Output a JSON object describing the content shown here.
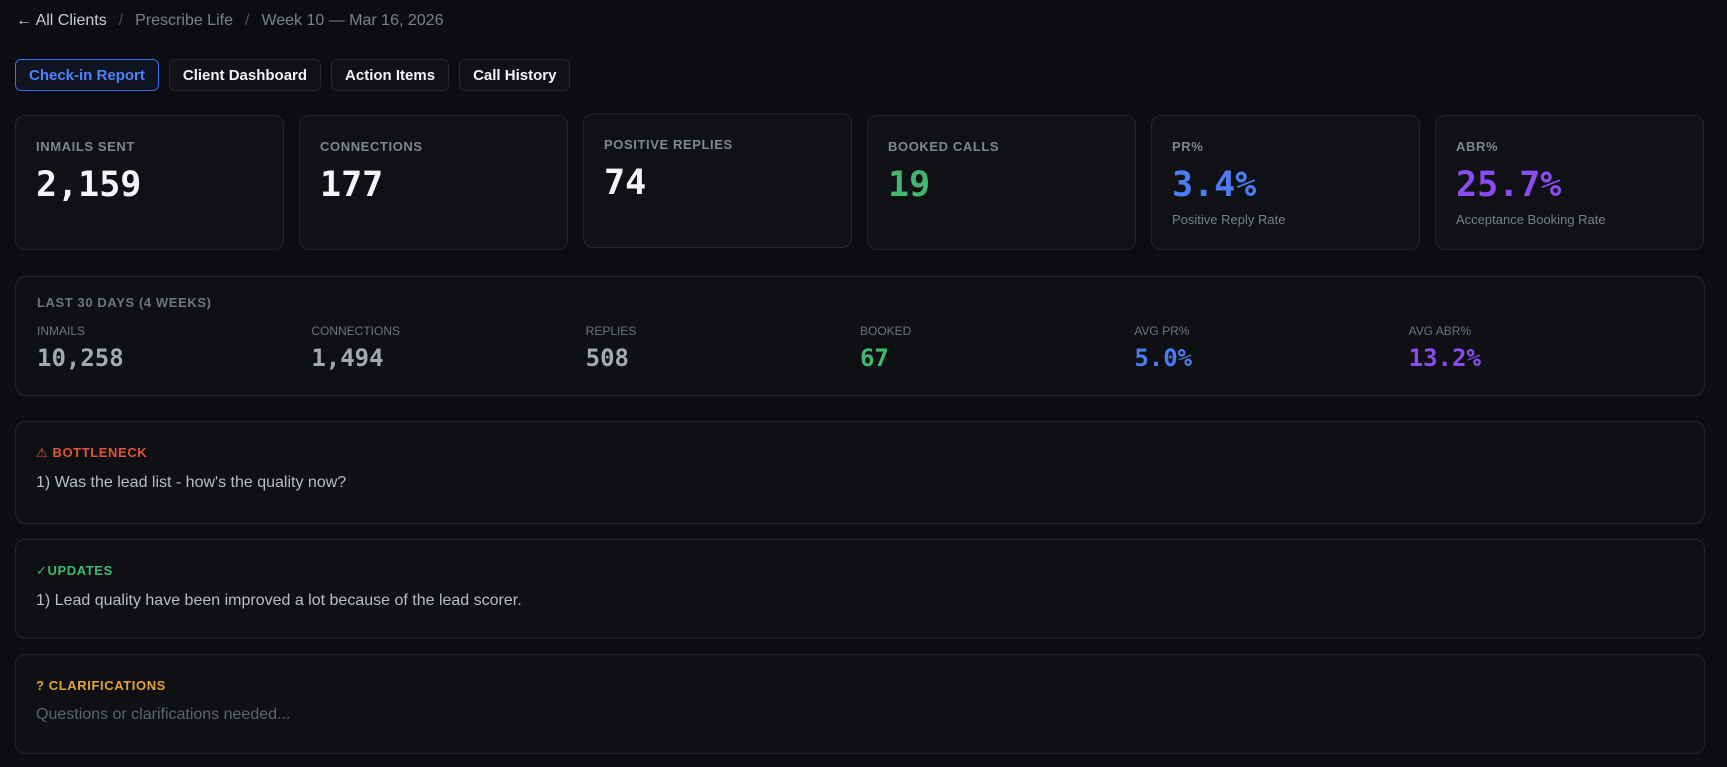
{
  "breadcrumb": {
    "back": "← All Clients",
    "client": "Prescribe Life",
    "week": "Week 10 — Mar 16, 2026"
  },
  "tabs": [
    {
      "label": "Check-in Report",
      "active": true
    },
    {
      "label": "Client Dashboard",
      "active": false
    },
    {
      "label": "Action Items",
      "active": false
    },
    {
      "label": "Call History",
      "active": false
    }
  ],
  "metrics": [
    {
      "label": "INMAILS SENT",
      "value": "2,159",
      "sub": ""
    },
    {
      "label": "CONNECTIONS",
      "value": "177",
      "sub": ""
    },
    {
      "label": "POSITIVE REPLIES",
      "value": "74",
      "sub": ""
    },
    {
      "label": "BOOKED CALLS",
      "value": "19",
      "sub": ""
    },
    {
      "label": "PR%",
      "value": "3.4%",
      "sub": "Positive Reply Rate"
    },
    {
      "label": "ABR%",
      "value": "25.7%",
      "sub": "Acceptance Booking Rate"
    }
  ],
  "summary": {
    "title": "LAST 30 DAYS (4 WEEKS)",
    "stats": [
      {
        "label": "INMAILS",
        "value": "10,258"
      },
      {
        "label": "CONNECTIONS",
        "value": "1,494"
      },
      {
        "label": "REPLIES",
        "value": "508"
      },
      {
        "label": "BOOKED",
        "value": "67"
      },
      {
        "label": "AVG PR%",
        "value": "5.0%"
      },
      {
        "label": "AVG ABR%",
        "value": "13.2%"
      }
    ]
  },
  "bottleneck": {
    "heading": "⚠ BOTTLENECK",
    "text": "1) Was the lead list - how's the quality now?"
  },
  "updates": {
    "heading": "✓UPDATES",
    "text": "1) Lead quality have been improved a lot because of the lead scorer."
  },
  "clarifications": {
    "heading": "? CLARIFICATIONS",
    "placeholder": "Questions or clarifications needed..."
  },
  "colors": {
    "accent_blue": "#4a7cf2",
    "accent_purple": "#8a4cf0",
    "success_green": "#3fb871",
    "warning_red": "#e0533c",
    "notice_amber": "#e2a23a"
  }
}
